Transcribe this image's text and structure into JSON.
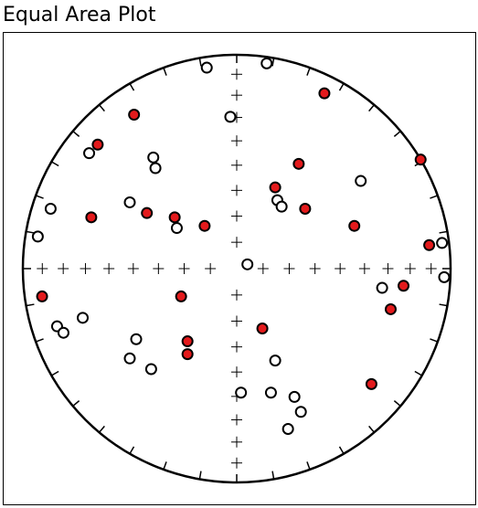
{
  "chart_data": {
    "type": "scatter",
    "title": "Equal Area Plot",
    "xlim": [
      -1,
      1
    ],
    "ylim": [
      -1,
      1
    ],
    "series": [
      {
        "color": "#e31a1c",
        "x": [
          0.41,
          -0.48,
          -0.65,
          0.29,
          0.86,
          0.18,
          0.32,
          -0.68,
          -0.42,
          -0.29,
          -0.15,
          0.55,
          0.9,
          -0.91,
          -0.26,
          0.78,
          0.72,
          0.12,
          -0.23,
          -0.23,
          0.63
        ],
        "values": [
          0.82,
          0.72,
          0.58,
          0.49,
          0.51,
          0.38,
          0.28,
          0.24,
          0.26,
          0.24,
          0.2,
          0.2,
          0.11,
          -0.13,
          -0.13,
          -0.08,
          -0.19,
          -0.28,
          -0.34,
          -0.4,
          -0.54
        ]
      },
      {
        "color": "#ffffff",
        "x": [
          -0.14,
          0.14,
          -0.03,
          -0.69,
          -0.39,
          -0.38,
          0.58,
          0.19,
          0.21,
          -0.87,
          -0.5,
          -0.28,
          -0.93,
          0.96,
          0.05,
          0.97,
          0.68,
          -0.72,
          -0.84,
          -0.81,
          -0.47,
          -0.5,
          -0.4,
          0.18,
          0.02,
          0.16,
          0.27,
          0.3,
          0.24
        ],
        "values": [
          0.94,
          0.96,
          0.71,
          0.54,
          0.52,
          0.47,
          0.41,
          0.32,
          0.29,
          0.28,
          0.31,
          0.19,
          0.15,
          0.12,
          0.02,
          -0.04,
          -0.09,
          -0.23,
          -0.27,
          -0.3,
          -0.33,
          -0.42,
          -0.47,
          -0.43,
          -0.58,
          -0.58,
          -0.6,
          -0.67,
          -0.75
        ]
      }
    ]
  }
}
